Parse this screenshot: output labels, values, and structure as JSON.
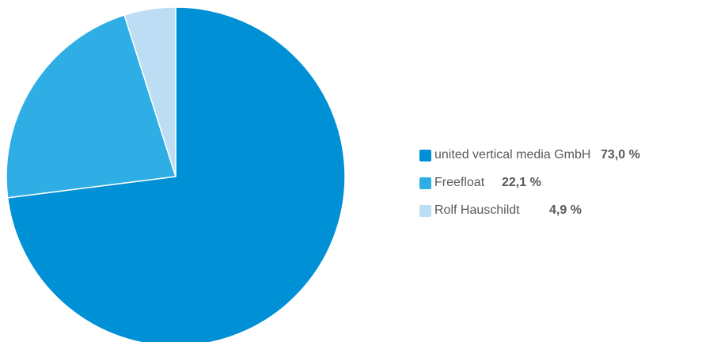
{
  "chart_data": {
    "type": "pie",
    "start_angle_deg": 0,
    "direction": "clockwise",
    "legend_position": "right",
    "slices": [
      {
        "label": "united vertical media GmbH",
        "value": 73.0,
        "value_label": "73,0 %",
        "color": "#0090D5"
      },
      {
        "label": "Freefloat",
        "value": 22.1,
        "value_label": "22,1 %",
        "color": "#2EAEE5"
      },
      {
        "label": "Rolf Hauschildt",
        "value": 4.9,
        "value_label": "4,9 %",
        "color": "#BDDDF5"
      }
    ]
  }
}
